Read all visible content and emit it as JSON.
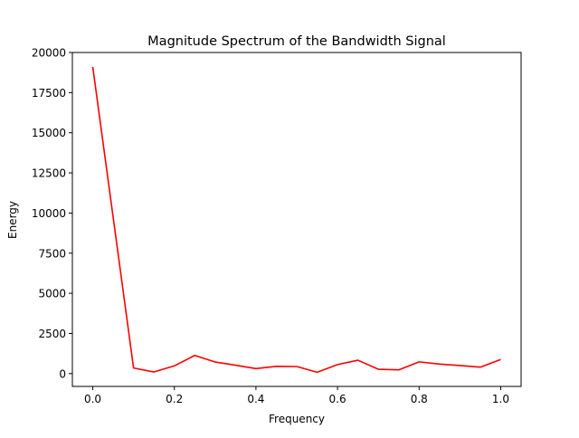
{
  "chart_data": {
    "type": "line",
    "title": "Magnitude Spectrum of the Bandwidth Signal",
    "xlabel": "Frequency",
    "ylabel": "Energy",
    "xlim": [
      -0.05,
      1.05
    ],
    "ylim": [
      -800,
      20000
    ],
    "xticks": [
      0.0,
      0.2,
      0.4,
      0.6,
      0.8,
      1.0
    ],
    "xtick_labels": [
      "0.0",
      "0.2",
      "0.4",
      "0.6",
      "0.8",
      "1.0"
    ],
    "yticks": [
      0,
      2500,
      5000,
      7500,
      10000,
      12500,
      15000,
      17500,
      20000
    ],
    "ytick_labels": [
      "0",
      "2500",
      "5000",
      "7500",
      "10000",
      "12500",
      "15000",
      "17500",
      "20000"
    ],
    "grid": false,
    "series": [
      {
        "color": "#ff0000",
        "x": [
          0.0,
          0.1,
          0.15,
          0.2,
          0.25,
          0.3,
          0.35,
          0.4,
          0.45,
          0.5,
          0.55,
          0.6,
          0.65,
          0.7,
          0.75,
          0.8,
          0.85,
          0.9,
          0.95,
          1.0
        ],
        "y": [
          19100,
          350,
          100,
          480,
          1130,
          720,
          520,
          310,
          450,
          440,
          80,
          560,
          830,
          270,
          230,
          730,
          590,
          500,
          400,
          880
        ]
      }
    ]
  }
}
